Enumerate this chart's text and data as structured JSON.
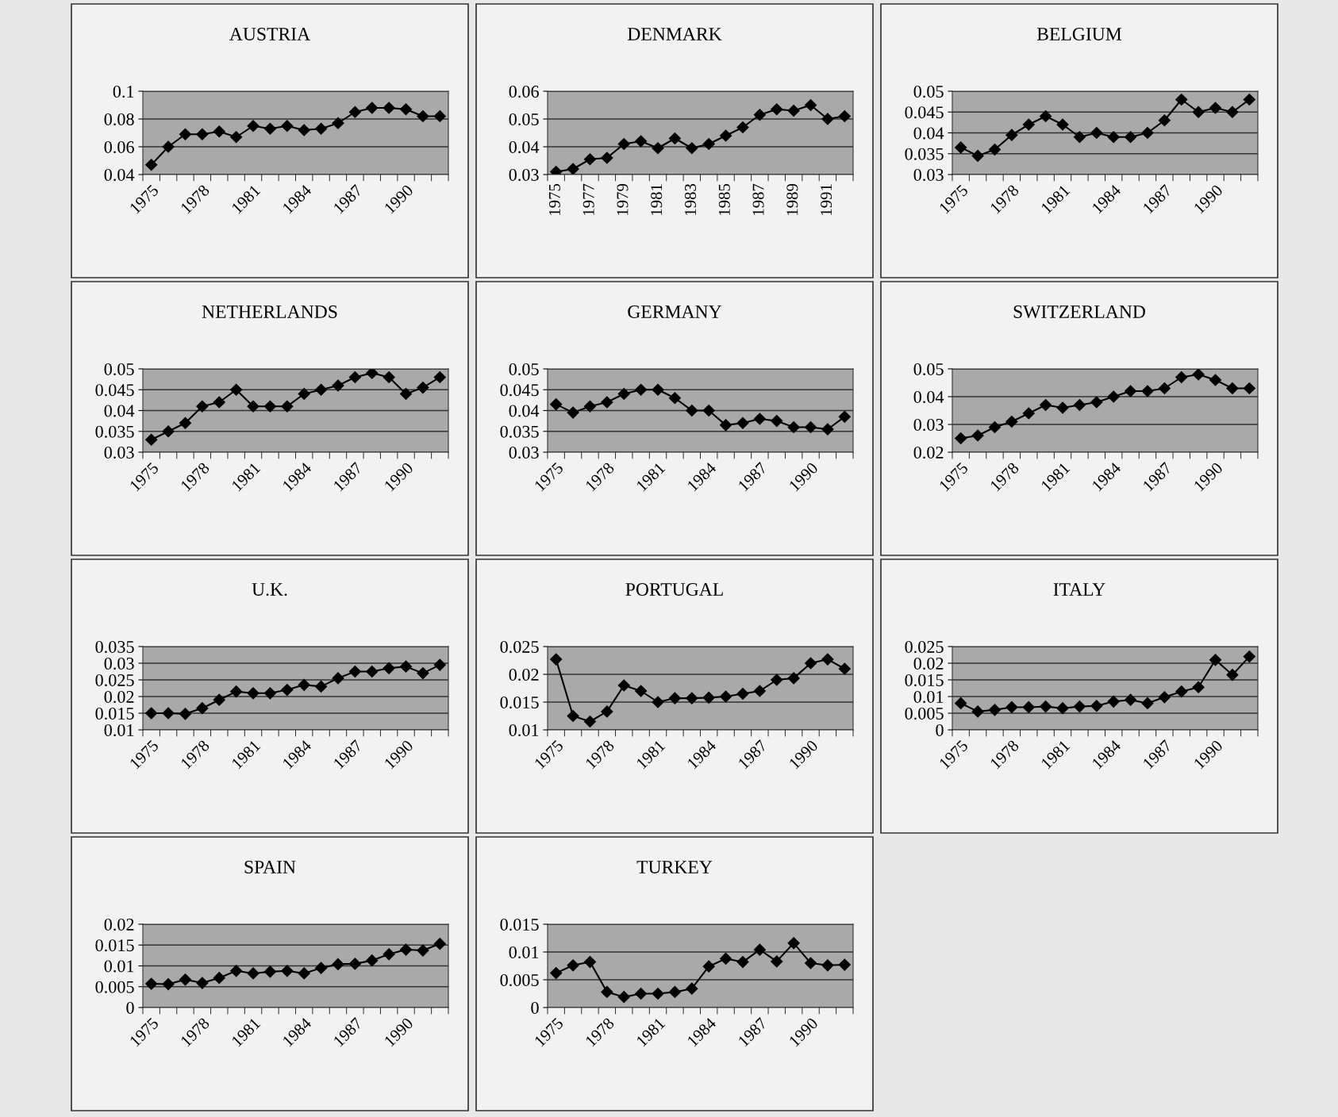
{
  "chart_data": [
    {
      "type": "line",
      "title": "AUSTRIA",
      "categories": [
        "1975",
        null,
        null,
        "1978",
        null,
        null,
        "1981",
        null,
        null,
        "1984",
        null,
        null,
        "1987",
        null,
        null,
        "1990",
        null,
        null
      ],
      "values": [
        0.047,
        0.06,
        0.069,
        0.069,
        0.071,
        0.067,
        0.075,
        0.073,
        0.075,
        0.072,
        0.073,
        0.077,
        0.085,
        0.088,
        0.088,
        0.087,
        0.082,
        0.082
      ],
      "color": "#000000",
      "ylim": [
        0.04,
        0.1
      ],
      "yticks": [
        0.04,
        0.06,
        0.08,
        0.1
      ],
      "grid": "y",
      "marker": "diamond",
      "line_style": "solid",
      "legend": false
    },
    {
      "type": "line",
      "title": "DENMARK",
      "categories": [
        "1975",
        null,
        "1977",
        null,
        "1979",
        null,
        "1981",
        null,
        "1983",
        null,
        "1985",
        null,
        "1987",
        null,
        "1989",
        null,
        "1991",
        null
      ],
      "values": [
        0.031,
        0.032,
        0.0355,
        0.036,
        0.041,
        0.042,
        0.0395,
        0.043,
        0.0395,
        0.041,
        0.044,
        0.047,
        0.0515,
        0.0535,
        0.053,
        0.055,
        0.05,
        0.051
      ],
      "color": "#000000",
      "ylim": [
        0.03,
        0.06
      ],
      "yticks": [
        0.03,
        0.04,
        0.05,
        0.06
      ],
      "grid": "y",
      "marker": "diamond",
      "line_style": "solid",
      "legend": false
    },
    {
      "type": "line",
      "title": "BELGIUM",
      "categories": [
        "1975",
        null,
        null,
        "1978",
        null,
        null,
        "1981",
        null,
        null,
        "1984",
        null,
        null,
        "1987",
        null,
        null,
        "1990",
        null,
        null
      ],
      "values": [
        0.0365,
        0.0345,
        0.036,
        0.0395,
        0.042,
        0.044,
        0.042,
        0.039,
        0.04,
        0.039,
        0.039,
        0.04,
        0.043,
        0.048,
        0.045,
        0.046,
        0.045,
        0.048
      ],
      "color": "#000000",
      "ylim": [
        0.03,
        0.05
      ],
      "yticks": [
        0.03,
        0.035,
        0.04,
        0.045,
        0.05
      ],
      "grid": "y",
      "marker": "diamond",
      "line_style": "solid",
      "legend": false
    },
    {
      "type": "line",
      "title": "NETHERLANDS",
      "categories": [
        "1975",
        null,
        null,
        "1978",
        null,
        null,
        "1981",
        null,
        null,
        "1984",
        null,
        null,
        "1987",
        null,
        null,
        "1990",
        null,
        null
      ],
      "values": [
        0.033,
        0.035,
        0.037,
        0.041,
        0.042,
        0.045,
        0.041,
        0.041,
        0.041,
        0.044,
        0.045,
        0.046,
        0.048,
        0.049,
        0.048,
        0.044,
        0.0455,
        0.048
      ],
      "color": "#000000",
      "ylim": [
        0.03,
        0.05
      ],
      "yticks": [
        0.03,
        0.035,
        0.04,
        0.045,
        0.05
      ],
      "grid": "y",
      "marker": "diamond",
      "line_style": "solid",
      "legend": false
    },
    {
      "type": "line",
      "title": "GERMANY",
      "categories": [
        "1975",
        null,
        null,
        "1978",
        null,
        null,
        "1981",
        null,
        null,
        "1984",
        null,
        null,
        "1987",
        null,
        null,
        "1990",
        null,
        null
      ],
      "values": [
        0.0415,
        0.0395,
        0.041,
        0.042,
        0.044,
        0.045,
        0.045,
        0.043,
        0.04,
        0.04,
        0.0365,
        0.037,
        0.038,
        0.0375,
        0.036,
        0.036,
        0.0355,
        0.0385
      ],
      "color": "#000000",
      "ylim": [
        0.03,
        0.05
      ],
      "yticks": [
        0.03,
        0.035,
        0.04,
        0.045,
        0.05
      ],
      "grid": "y",
      "marker": "diamond",
      "line_style": "solid",
      "legend": false
    },
    {
      "type": "line",
      "title": "SWITZERLAND",
      "categories": [
        "1975",
        null,
        null,
        "1978",
        null,
        null,
        "1981",
        null,
        null,
        "1984",
        null,
        null,
        "1987",
        null,
        null,
        "1990",
        null,
        null
      ],
      "values": [
        0.025,
        0.026,
        0.029,
        0.031,
        0.034,
        0.037,
        0.036,
        0.037,
        0.038,
        0.04,
        0.042,
        0.042,
        0.043,
        0.047,
        0.048,
        0.046,
        0.043,
        0.043
      ],
      "color": "#000000",
      "ylim": [
        0.02,
        0.05
      ],
      "yticks": [
        0.02,
        0.03,
        0.04,
        0.05
      ],
      "grid": "y",
      "marker": "diamond",
      "line_style": "solid",
      "legend": false
    },
    {
      "type": "line",
      "title": "U.K.",
      "categories": [
        "1975",
        null,
        null,
        "1978",
        null,
        null,
        "1981",
        null,
        null,
        "1984",
        null,
        null,
        "1987",
        null,
        null,
        "1990",
        null,
        null
      ],
      "values": [
        0.015,
        0.015,
        0.0148,
        0.0165,
        0.019,
        0.0215,
        0.021,
        0.021,
        0.022,
        0.0235,
        0.023,
        0.0255,
        0.0275,
        0.0275,
        0.0285,
        0.029,
        0.027,
        0.0295
      ],
      "color": "#000000",
      "ylim": [
        0.01,
        0.035
      ],
      "yticks": [
        0.01,
        0.015,
        0.02,
        0.025,
        0.03,
        0.035
      ],
      "grid": "y",
      "marker": "diamond",
      "line_style": "solid",
      "legend": false
    },
    {
      "type": "line",
      "title": "PORTUGAL",
      "categories": [
        "1975",
        null,
        null,
        "1978",
        null,
        null,
        "1981",
        null,
        null,
        "1984",
        null,
        null,
        "1987",
        null,
        null,
        "1990",
        null,
        null
      ],
      "values": [
        0.0227,
        0.0125,
        0.0115,
        0.0133,
        0.018,
        0.017,
        0.015,
        0.0157,
        0.0157,
        0.0158,
        0.016,
        0.0165,
        0.017,
        0.019,
        0.0193,
        0.022,
        0.0227,
        0.021
      ],
      "color": "#000000",
      "ylim": [
        0.01,
        0.025
      ],
      "yticks": [
        0.01,
        0.015,
        0.02,
        0.025
      ],
      "grid": "y",
      "marker": "diamond",
      "line_style": "solid",
      "legend": false
    },
    {
      "type": "line",
      "title": "ITALY",
      "categories": [
        "1975",
        null,
        null,
        "1978",
        null,
        null,
        "1981",
        null,
        null,
        "1984",
        null,
        null,
        "1987",
        null,
        null,
        "1990",
        null,
        null
      ],
      "values": [
        0.008,
        0.0055,
        0.006,
        0.0068,
        0.0068,
        0.007,
        0.0065,
        0.007,
        0.0072,
        0.0085,
        0.009,
        0.008,
        0.0098,
        0.0115,
        0.0128,
        0.021,
        0.0165,
        0.022
      ],
      "color": "#000000",
      "ylim": [
        0,
        0.025
      ],
      "yticks": [
        0,
        0.005,
        0.01,
        0.015,
        0.02,
        0.025
      ],
      "grid": "y",
      "marker": "diamond",
      "line_style": "solid",
      "legend": false
    },
    {
      "type": "line",
      "title": "SPAIN",
      "categories": [
        "1975",
        null,
        null,
        "1978",
        null,
        null,
        "1981",
        null,
        null,
        "1984",
        null,
        null,
        "1987",
        null,
        null,
        "1990",
        null,
        null
      ],
      "values": [
        0.0057,
        0.0056,
        0.0067,
        0.0059,
        0.0071,
        0.0088,
        0.0082,
        0.0086,
        0.0088,
        0.0082,
        0.0095,
        0.0104,
        0.0105,
        0.0113,
        0.0128,
        0.0139,
        0.0137,
        0.0153
      ],
      "color": "#000000",
      "ylim": [
        0,
        0.02
      ],
      "yticks": [
        0,
        0.005,
        0.01,
        0.015,
        0.02
      ],
      "grid": "y",
      "marker": "diamond",
      "line_style": "solid",
      "legend": false
    },
    {
      "type": "line",
      "title": "TURKEY",
      "categories": [
        "1975",
        null,
        null,
        "1978",
        null,
        null,
        "1981",
        null,
        null,
        "1984",
        null,
        null,
        "1987",
        null,
        null,
        "1990",
        null,
        null
      ],
      "values": [
        0.0062,
        0.0076,
        0.0082,
        0.0028,
        0.0019,
        0.0025,
        0.0025,
        0.0028,
        0.0034,
        0.0074,
        0.0088,
        0.0082,
        0.0104,
        0.0083,
        0.0116,
        0.008,
        0.0076,
        0.0077
      ],
      "color": "#000000",
      "ylim": [
        0,
        0.015
      ],
      "yticks": [
        0,
        0.005,
        0.01,
        0.015
      ],
      "grid": "y",
      "marker": "diamond",
      "line_style": "solid",
      "legend": false
    }
  ]
}
